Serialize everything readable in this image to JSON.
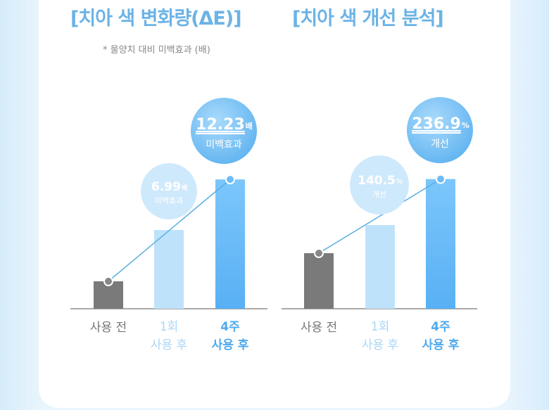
{
  "titles": {
    "left": "[치아 색 변화량(ΔE)]",
    "right": "[치아 색 개선 분석]"
  },
  "note": "* 물양치 대비 미백효과 (배)",
  "colors": {
    "title": "#6bb3e6",
    "gray": "#7a7a7a",
    "light": "#bfe2fb",
    "blue": "#6cbcf7",
    "line": "#5aaee0"
  },
  "chart_data": [
    {
      "type": "bar",
      "title": "[치아 색 변화량(ΔE)]",
      "subtitle": "* 물양치 대비 미백효과 (배)",
      "categories": [
        [
          "사용 전"
        ],
        [
          "1회",
          "사용 후"
        ],
        [
          "4주",
          "사용 후"
        ]
      ],
      "values": [
        1,
        6.99,
        12.23
      ],
      "callouts": [
        {
          "value": "6.99",
          "unit": "배",
          "caption": "미백효과"
        },
        {
          "value": "12.23",
          "unit": "배",
          "caption": "미백효과"
        }
      ]
    },
    {
      "type": "bar",
      "title": "[치아 색 개선 분석]",
      "categories": [
        [
          "사용 전"
        ],
        [
          "1회",
          "사용 후"
        ],
        [
          "4주",
          "사용 후"
        ]
      ],
      "values": [
        100,
        140.5,
        236.9
      ],
      "callouts": [
        {
          "value": "140.5",
          "unit": "%",
          "caption": "개선"
        },
        {
          "value": "236.9",
          "unit": "%",
          "caption": "개선"
        }
      ]
    }
  ]
}
